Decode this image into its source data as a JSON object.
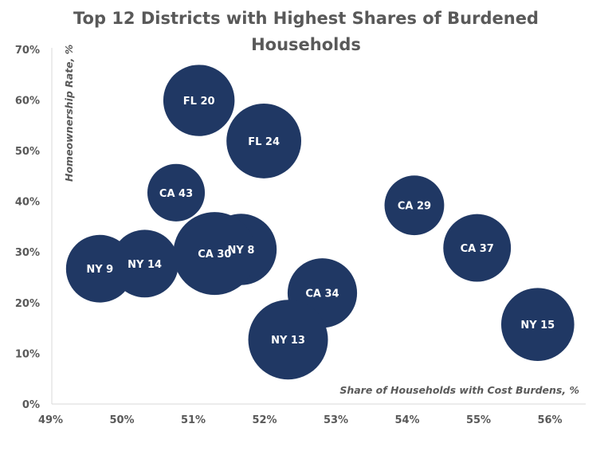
{
  "chart_data": {
    "type": "bubble",
    "title_lines": [
      "Top 12 Districts with Highest Shares of Burdened",
      "Households"
    ],
    "xlabel": "Share of Households with Cost Burdens, %",
    "ylabel": "Homeownership Rate, %",
    "xlim": [
      49,
      56.5
    ],
    "ylim": [
      0,
      70
    ],
    "x_ticks": [
      "49%",
      "50%",
      "51%",
      "52%",
      "53%",
      "54%",
      "55%",
      "56%"
    ],
    "y_ticks": [
      "0%",
      "10%",
      "20%",
      "30%",
      "40%",
      "50%",
      "60%",
      "70%"
    ],
    "grid": false,
    "bubble_color": "#203864",
    "points": [
      {
        "label": "FL 20",
        "x": 51.08,
        "y": 59.9,
        "size": 20
      },
      {
        "label": "FL 24",
        "x": 51.99,
        "y": 51.9,
        "size": 22
      },
      {
        "label": "CA 43",
        "x": 50.76,
        "y": 41.7,
        "size": 13
      },
      {
        "label": "CA 29",
        "x": 54.1,
        "y": 39.2,
        "size": 14
      },
      {
        "label": "NY 9",
        "x": 49.69,
        "y": 26.7,
        "size": 18
      },
      {
        "label": "NY 14",
        "x": 50.32,
        "y": 27.7,
        "size": 18
      },
      {
        "label": "NY 8",
        "x": 51.67,
        "y": 30.5,
        "size": 20
      },
      {
        "label": "CA 30",
        "x": 51.3,
        "y": 29.7,
        "size": 27
      },
      {
        "label": "CA 37",
        "x": 54.98,
        "y": 30.8,
        "size": 18
      },
      {
        "label": "CA 34",
        "x": 52.81,
        "y": 21.9,
        "size": 19
      },
      {
        "label": "NY 13",
        "x": 52.33,
        "y": 12.7,
        "size": 25
      },
      {
        "label": "NY 15",
        "x": 55.83,
        "y": 15.7,
        "size": 21
      }
    ]
  }
}
